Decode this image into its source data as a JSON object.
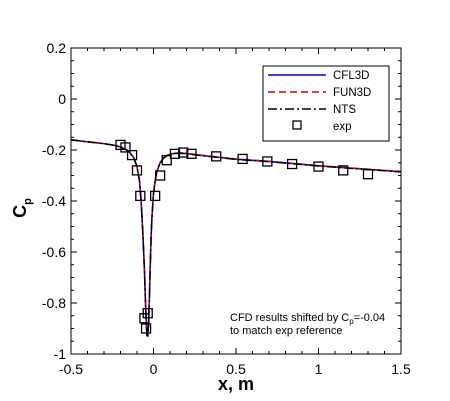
{
  "chart_data": {
    "type": "line",
    "xlabel": "x, m",
    "ylabel_main": "C",
    "ylabel_sub": "p",
    "xlim": [
      -0.5,
      1.5
    ],
    "ylim": [
      -1.0,
      0.2
    ],
    "xticks": [
      -0.5,
      0,
      0.5,
      1,
      1.5
    ],
    "xtick_labels": [
      "-0.5",
      "0",
      "0.5",
      "1",
      "1.5"
    ],
    "yticks": [
      0.2,
      0,
      -0.2,
      -0.4,
      -0.6,
      -0.8,
      -1
    ],
    "ytick_labels": [
      "0.2",
      "0",
      "-0.2",
      "-0.4",
      "-0.6",
      "-0.8",
      "-1"
    ],
    "grid": false,
    "legend_position": "top-right",
    "annotation": [
      "CFD results shifted by C",
      "p",
      "=-0.04",
      "to match exp reference"
    ],
    "series": [
      {
        "name": "CFL3D",
        "style": "solid",
        "color": "#0000cc",
        "x": [
          -0.5,
          -0.4,
          -0.3,
          -0.25,
          -0.2,
          -0.15,
          -0.12,
          -0.1,
          -0.085,
          -0.075,
          -0.065,
          -0.055,
          -0.05,
          -0.045,
          -0.04,
          -0.035,
          -0.03,
          -0.025,
          -0.02,
          -0.015,
          -0.01,
          0,
          0.01,
          0.02,
          0.04,
          0.06,
          0.08,
          0.1,
          0.13,
          0.16,
          0.2,
          0.3,
          0.5,
          0.7,
          1.0,
          1.3,
          1.5
        ],
        "y": [
          -0.16,
          -0.168,
          -0.175,
          -0.18,
          -0.188,
          -0.205,
          -0.23,
          -0.265,
          -0.32,
          -0.4,
          -0.52,
          -0.67,
          -0.77,
          -0.86,
          -0.925,
          -0.93,
          -0.88,
          -0.78,
          -0.66,
          -0.55,
          -0.47,
          -0.37,
          -0.32,
          -0.285,
          -0.25,
          -0.232,
          -0.222,
          -0.217,
          -0.213,
          -0.212,
          -0.214,
          -0.222,
          -0.236,
          -0.245,
          -0.262,
          -0.276,
          -0.285
        ]
      },
      {
        "name": "FUN3D",
        "style": "dashed",
        "color": "#cc0000",
        "x": [
          -0.5,
          -0.4,
          -0.3,
          -0.25,
          -0.2,
          -0.15,
          -0.12,
          -0.1,
          -0.085,
          -0.075,
          -0.065,
          -0.055,
          -0.05,
          -0.045,
          -0.04,
          -0.035,
          -0.03,
          -0.025,
          -0.02,
          -0.015,
          -0.01,
          0,
          0.01,
          0.02,
          0.04,
          0.06,
          0.08,
          0.1,
          0.13,
          0.16,
          0.2,
          0.3,
          0.5,
          0.7,
          1.0,
          1.3,
          1.5
        ],
        "y": [
          -0.16,
          -0.168,
          -0.175,
          -0.18,
          -0.188,
          -0.205,
          -0.23,
          -0.265,
          -0.32,
          -0.4,
          -0.52,
          -0.67,
          -0.77,
          -0.86,
          -0.92,
          -0.925,
          -0.875,
          -0.775,
          -0.655,
          -0.545,
          -0.465,
          -0.368,
          -0.318,
          -0.284,
          -0.249,
          -0.231,
          -0.221,
          -0.216,
          -0.212,
          -0.211,
          -0.213,
          -0.221,
          -0.235,
          -0.244,
          -0.261,
          -0.275,
          -0.284
        ]
      },
      {
        "name": "NTS",
        "style": "dashdot",
        "color": "#000000",
        "x": [
          -0.5,
          -0.4,
          -0.3,
          -0.25,
          -0.2,
          -0.15,
          -0.12,
          -0.1,
          -0.085,
          -0.075,
          -0.065,
          -0.055,
          -0.05,
          -0.045,
          -0.04,
          -0.035,
          -0.03,
          -0.025,
          -0.02,
          -0.015,
          -0.01,
          0,
          0.01,
          0.02,
          0.04,
          0.06,
          0.08,
          0.1,
          0.13,
          0.16,
          0.2,
          0.3,
          0.5,
          0.7,
          1.0,
          1.3,
          1.5
        ],
        "y": [
          -0.16,
          -0.168,
          -0.175,
          -0.18,
          -0.188,
          -0.205,
          -0.23,
          -0.265,
          -0.32,
          -0.4,
          -0.52,
          -0.67,
          -0.77,
          -0.86,
          -0.93,
          -0.935,
          -0.885,
          -0.785,
          -0.665,
          -0.555,
          -0.475,
          -0.372,
          -0.321,
          -0.286,
          -0.251,
          -0.233,
          -0.223,
          -0.218,
          -0.214,
          -0.213,
          -0.215,
          -0.223,
          -0.237,
          -0.246,
          -0.263,
          -0.277,
          -0.286
        ]
      },
      {
        "name": "exp",
        "style": "markers",
        "marker": "square",
        "color": "#000000",
        "x": [
          -0.2,
          -0.17,
          -0.13,
          -0.1,
          -0.08,
          -0.055,
          -0.045,
          -0.035,
          0.01,
          0.04,
          0.08,
          0.13,
          0.18,
          0.23,
          0.38,
          0.54,
          0.69,
          0.84,
          1.0,
          1.15,
          1.3
        ],
        "y": [
          -0.18,
          -0.19,
          -0.22,
          -0.28,
          -0.38,
          -0.86,
          -0.9,
          -0.84,
          -0.38,
          -0.3,
          -0.24,
          -0.215,
          -0.21,
          -0.215,
          -0.225,
          -0.235,
          -0.245,
          -0.255,
          -0.265,
          -0.28,
          -0.295
        ]
      }
    ]
  }
}
